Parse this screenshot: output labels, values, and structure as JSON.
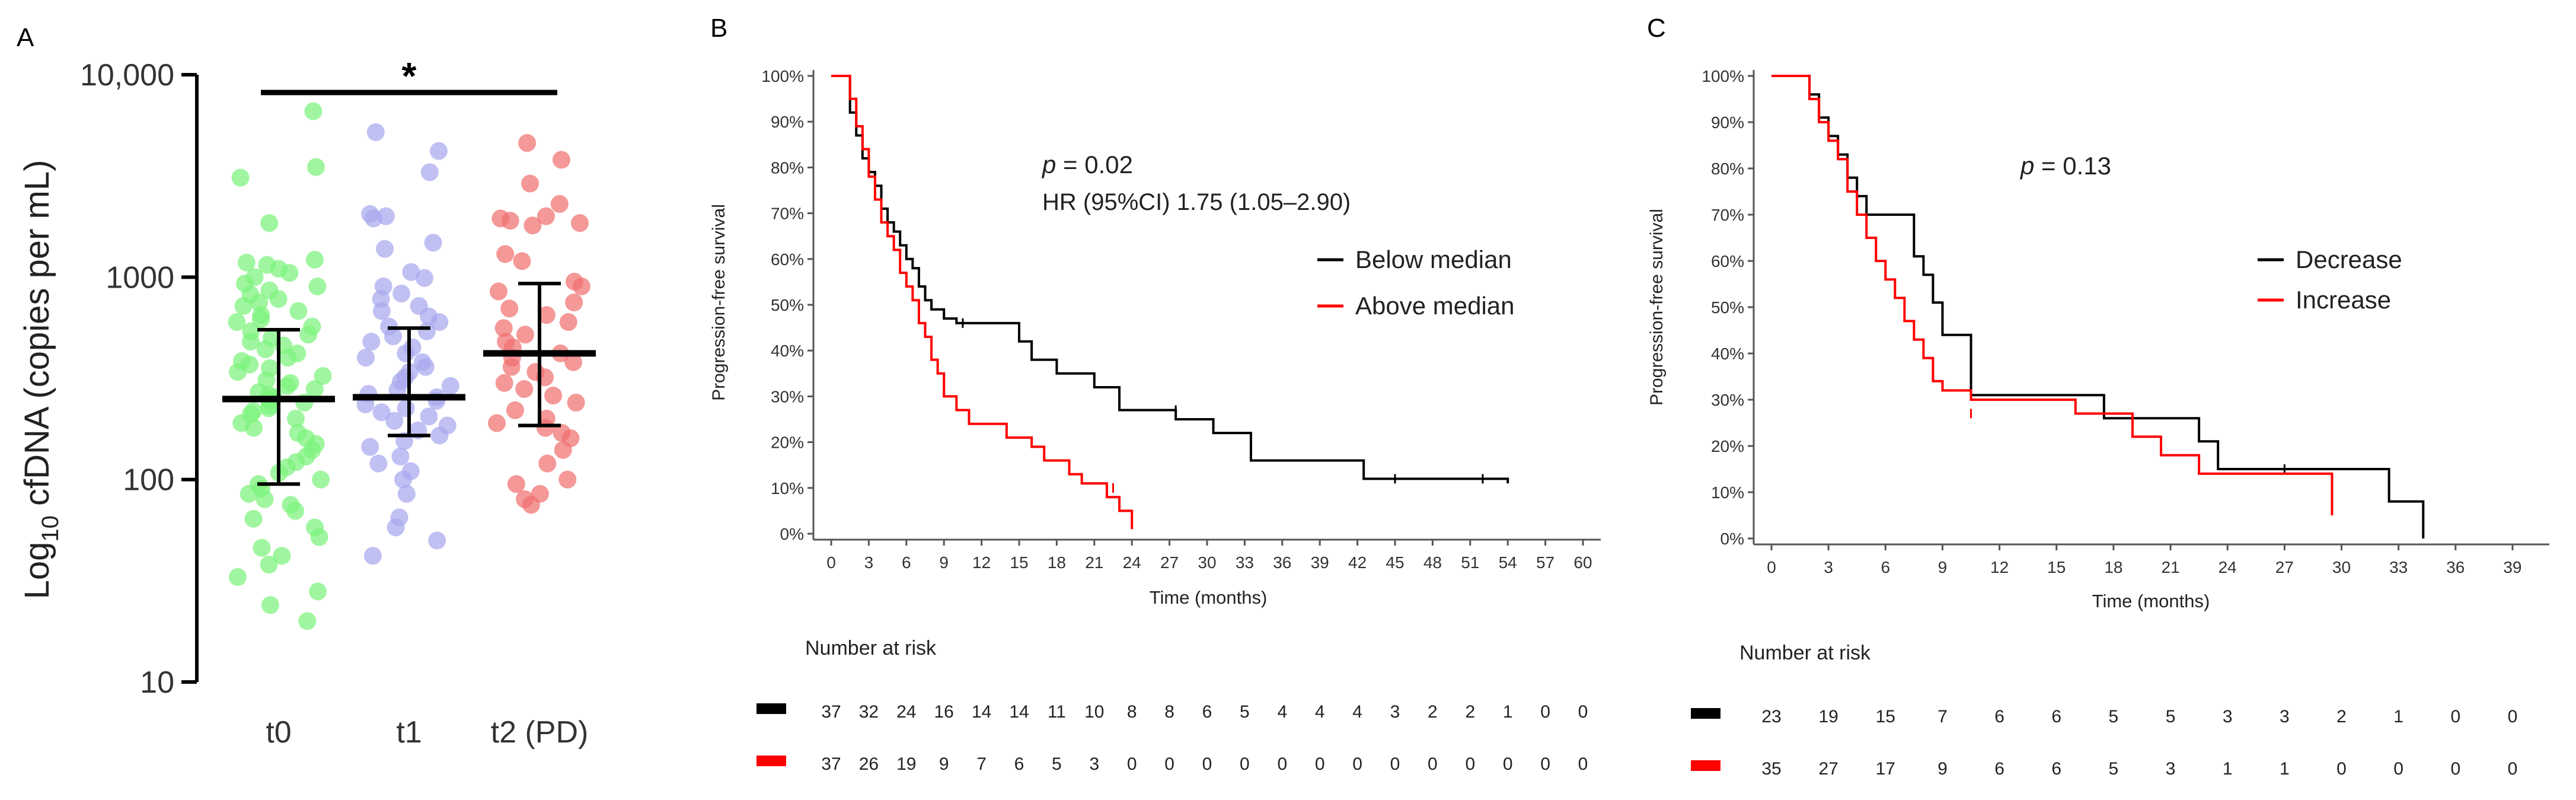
{
  "panels": [
    {
      "letter": "A"
    },
    {
      "letter": "B"
    },
    {
      "letter": "C"
    }
  ],
  "chart_data": [
    {
      "type": "scatter",
      "panel": "A",
      "ylabel_prefix": "Log",
      "ylabel_sub": "10",
      "ylabel_rest": " cfDNA (copies per mL)",
      "yscale": "log",
      "ylim": [
        10,
        10000
      ],
      "yticks": [
        "10",
        "100",
        "1000",
        "10,000"
      ],
      "categories": [
        "t0",
        "t1",
        "t2 (PD)"
      ],
      "significance": "*",
      "colors": [
        "#7cf27c",
        "#a8a8ef",
        "#f07070"
      ],
      "series": [
        {
          "category": "t0",
          "median": 250,
          "q1": 95,
          "q3": 550,
          "values": [
            6600,
            3500,
            3100,
            1850,
            1220,
            1180,
            1150,
            1100,
            1050,
            1000,
            930,
            900,
            860,
            820,
            780,
            750,
            720,
            680,
            650,
            620,
            600,
            570,
            540,
            520,
            500,
            480,
            460,
            440,
            420,
            400,
            385,
            370,
            355,
            340,
            325,
            310,
            300,
            290,
            280,
            270,
            262,
            255,
            248,
            240,
            232,
            225,
            218,
            210,
            200,
            190,
            180,
            170,
            160,
            150,
            140,
            130,
            122,
            115,
            108,
            100,
            95,
            90,
            85,
            80,
            75,
            70,
            64,
            58,
            52,
            46,
            42,
            38,
            33,
            28,
            24,
            20
          ]
        },
        {
          "category": "t1",
          "median": 255,
          "q1": 165,
          "q3": 560,
          "values": [
            5200,
            4200,
            3300,
            2050,
            2000,
            1950,
            1480,
            1380,
            1060,
            990,
            900,
            830,
            780,
            720,
            680,
            640,
            600,
            570,
            540,
            510,
            480,
            450,
            420,
            400,
            380,
            360,
            340,
            320,
            305,
            290,
            278,
            265,
            255,
            245,
            235,
            225,
            215,
            205,
            195,
            185,
            175,
            165,
            155,
            145,
            130,
            120,
            110,
            100,
            85,
            65,
            58,
            50,
            42
          ]
        },
        {
          "category": "t2 (PD)",
          "median": 420,
          "q1": 185,
          "q3": 930,
          "values": [
            4600,
            3800,
            2900,
            2300,
            2000,
            1950,
            1900,
            1850,
            1800,
            1300,
            1200,
            950,
            900,
            850,
            750,
            700,
            650,
            600,
            560,
            520,
            480,
            450,
            420,
            400,
            380,
            360,
            340,
            320,
            300,
            280,
            260,
            240,
            220,
            200,
            190,
            180,
            170,
            160,
            140,
            120,
            100,
            95,
            85,
            80,
            75
          ]
        }
      ]
    },
    {
      "type": "line",
      "panel": "B",
      "xlabel": "Time (months)",
      "ylabel": "Progression-free survival",
      "xlim": [
        0,
        60
      ],
      "xticks": [
        "0",
        "3",
        "6",
        "9",
        "12",
        "15",
        "18",
        "21",
        "24",
        "27",
        "30",
        "33",
        "36",
        "39",
        "42",
        "45",
        "48",
        "51",
        "54",
        "57",
        "60"
      ],
      "yticks": [
        "0%",
        "10%",
        "20%",
        "30%",
        "40%",
        "50%",
        "60%",
        "70%",
        "80%",
        "90%",
        "100%"
      ],
      "annotation_p_label": "p",
      "annotation_p_value": " = 0.02",
      "annotation_hr": "HR (95%CI) 1.75 (1.05–2.90)",
      "risk_title": "Number at risk",
      "series": [
        {
          "name": "Below median",
          "color": "#000000",
          "x": [
            0,
            1,
            1.5,
            2,
            2.5,
            3,
            3.5,
            4,
            4.5,
            5,
            5.5,
            6,
            6.5,
            7,
            7.5,
            8,
            9,
            10,
            15,
            16,
            18,
            21,
            23,
            27.5,
            30.5,
            33.5,
            42.5,
            54
          ],
          "y": [
            100,
            100,
            92,
            87,
            82,
            79,
            76,
            71,
            68,
            66,
            63,
            60,
            58,
            54,
            51,
            49,
            47,
            46,
            42,
            38,
            35,
            32,
            27,
            25,
            22,
            16,
            12,
            11
          ],
          "censor": [
            [
              10.5,
              46
            ],
            [
              27.5,
              27
            ],
            [
              45,
              12
            ],
            [
              52,
              12
            ]
          ],
          "at_risk": [
            "37",
            "32",
            "24",
            "16",
            "14",
            "14",
            "11",
            "10",
            "8",
            "8",
            "6",
            "5",
            "4",
            "4",
            "4",
            "3",
            "2",
            "2",
            "1",
            "0",
            "0"
          ]
        },
        {
          "name": "Above median",
          "color": "#ff0000",
          "x": [
            0,
            1,
            1.5,
            2,
            2.5,
            3,
            3.5,
            4,
            4.5,
            5,
            5.5,
            6,
            6.5,
            7,
            7.5,
            8,
            8.5,
            9,
            10,
            11,
            14,
            16,
            17,
            19,
            20,
            22,
            23,
            24
          ],
          "y": [
            100,
            100,
            95,
            89,
            84,
            78,
            73,
            68,
            65,
            62,
            57,
            54,
            51,
            46,
            43,
            38,
            35,
            30,
            27,
            24,
            21,
            19,
            16,
            13,
            11,
            8,
            5,
            1
          ],
          "censor": [
            [
              22.5,
              10
            ]
          ],
          "at_risk": [
            "37",
            "26",
            "19",
            "9",
            "7",
            "6",
            "5",
            "3",
            "0",
            "0",
            "0",
            "0",
            "0",
            "0",
            "0",
            "0",
            "0",
            "0",
            "0",
            "0",
            "0"
          ]
        }
      ]
    },
    {
      "type": "line",
      "panel": "C",
      "xlabel": "Time (months)",
      "ylabel": "Progression-free survival",
      "xlim": [
        0,
        40
      ],
      "xticks": [
        "0",
        "3",
        "6",
        "9",
        "12",
        "15",
        "18",
        "21",
        "24",
        "27",
        "30",
        "33",
        "36",
        "39"
      ],
      "yticks": [
        "0%",
        "10%",
        "20%",
        "30%",
        "40%",
        "50%",
        "60%",
        "70%",
        "80%",
        "90%",
        "100%"
      ],
      "annotation_p_label": "p",
      "annotation_p_value": " = 0.13",
      "risk_title": "Number at risk",
      "series": [
        {
          "name": "Decrease",
          "color": "#000000",
          "x": [
            0,
            1.5,
            2,
            2.5,
            3,
            3.5,
            4,
            4.5,
            5,
            7,
            7.5,
            8,
            8.5,
            9,
            10.5,
            17.5,
            22.5,
            23.5,
            32.5,
            34.3
          ],
          "y": [
            100,
            100,
            96,
            91,
            87,
            83,
            78,
            74,
            70,
            70,
            61,
            57,
            51,
            44,
            31,
            26,
            21,
            15,
            8,
            0
          ],
          "censor": [
            [
              9,
              48
            ],
            [
              27,
              15
            ]
          ],
          "at_risk": [
            "23",
            "19",
            "15",
            "7",
            "6",
            "6",
            "5",
            "5",
            "3",
            "3",
            "2",
            "1",
            "0",
            "0"
          ]
        },
        {
          "name": "Increase",
          "color": "#ff0000",
          "x": [
            0,
            1.5,
            2,
            2.5,
            3,
            3.5,
            4,
            4.5,
            5,
            5.5,
            6,
            6.5,
            7,
            7.5,
            8,
            8.5,
            9,
            10.5,
            16,
            19,
            20.5,
            22.5,
            29.5
          ],
          "y": [
            100,
            100,
            95,
            90,
            86,
            82,
            75,
            70,
            65,
            60,
            56,
            52,
            47,
            43,
            39,
            34,
            32,
            30,
            27,
            22,
            18,
            14,
            5
          ],
          "censor": [
            [
              10.5,
              27
            ]
          ],
          "at_risk": [
            "35",
            "27",
            "17",
            "9",
            "6",
            "6",
            "5",
            "3",
            "1",
            "1",
            "0",
            "0",
            "0",
            "0"
          ]
        }
      ]
    }
  ]
}
